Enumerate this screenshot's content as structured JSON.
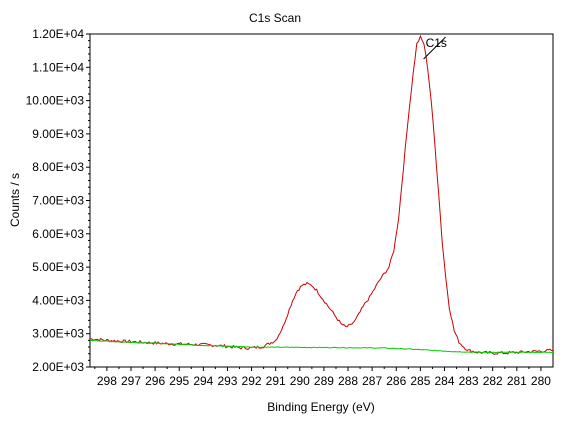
{
  "chart_data": {
    "type": "line",
    "title": "C1s Scan",
    "xlabel": "Binding Energy (eV)",
    "ylabel": "Counts / s",
    "x_reversed": true,
    "xlim": [
      298.7,
      279.5
    ],
    "ylim": [
      2000,
      12000
    ],
    "x_ticks": [
      {
        "v": 298,
        "label": "298"
      },
      {
        "v": 297,
        "label": "297"
      },
      {
        "v": 296,
        "label": "296"
      },
      {
        "v": 295,
        "label": "295"
      },
      {
        "v": 294,
        "label": "294"
      },
      {
        "v": 293,
        "label": "293"
      },
      {
        "v": 292,
        "label": "292"
      },
      {
        "v": 291,
        "label": "291"
      },
      {
        "v": 290,
        "label": "290"
      },
      {
        "v": 289,
        "label": "289"
      },
      {
        "v": 288,
        "label": "288"
      },
      {
        "v": 287,
        "label": "287"
      },
      {
        "v": 286,
        "label": "286"
      },
      {
        "v": 285,
        "label": "285"
      },
      {
        "v": 284,
        "label": "284"
      },
      {
        "v": 283,
        "label": "283"
      },
      {
        "v": 282,
        "label": "282"
      },
      {
        "v": 281,
        "label": "281"
      },
      {
        "v": 280,
        "label": "280"
      }
    ],
    "y_ticks": [
      {
        "v": 2000,
        "label": "2.00E+03"
      },
      {
        "v": 3000,
        "label": "3.00E+03"
      },
      {
        "v": 4000,
        "label": "4.00E+03"
      },
      {
        "v": 5000,
        "label": "5.00E+03"
      },
      {
        "v": 6000,
        "label": "6.00E+03"
      },
      {
        "v": 7000,
        "label": "7.00E+03"
      },
      {
        "v": 8000,
        "label": "8.00E+03"
      },
      {
        "v": 9000,
        "label": "9.00E+03"
      },
      {
        "v": 10000,
        "label": "10.00E+03"
      },
      {
        "v": 11000,
        "label": "1.10E+04"
      },
      {
        "v": 12000,
        "label": "1.20E+04"
      }
    ],
    "grid": false,
    "legend": "none",
    "series": [
      {
        "color": "#cc0000",
        "points": [
          [
            298.7,
            2850
          ],
          [
            298.0,
            2800
          ],
          [
            297.5,
            2780
          ],
          [
            297.0,
            2760
          ],
          [
            296.5,
            2740
          ],
          [
            296.0,
            2720
          ],
          [
            295.5,
            2700
          ],
          [
            295.0,
            2690
          ],
          [
            294.5,
            2680
          ],
          [
            294.0,
            2670
          ],
          [
            293.5,
            2650
          ],
          [
            293.0,
            2620
          ],
          [
            292.5,
            2580
          ],
          [
            292.0,
            2570
          ],
          [
            291.5,
            2620
          ],
          [
            291.0,
            2800
          ],
          [
            290.7,
            3200
          ],
          [
            290.5,
            3600
          ],
          [
            290.3,
            4000
          ],
          [
            290.1,
            4300
          ],
          [
            289.9,
            4450
          ],
          [
            289.7,
            4500
          ],
          [
            289.5,
            4450
          ],
          [
            289.3,
            4300
          ],
          [
            289.1,
            4100
          ],
          [
            288.9,
            3900
          ],
          [
            288.7,
            3700
          ],
          [
            288.5,
            3500
          ],
          [
            288.3,
            3300
          ],
          [
            288.1,
            3200
          ],
          [
            287.9,
            3250
          ],
          [
            287.7,
            3400
          ],
          [
            287.5,
            3650
          ],
          [
            287.3,
            3900
          ],
          [
            287.1,
            4100
          ],
          [
            286.9,
            4350
          ],
          [
            286.7,
            4600
          ],
          [
            286.5,
            4800
          ],
          [
            286.3,
            5000
          ],
          [
            286.1,
            5500
          ],
          [
            285.9,
            6500
          ],
          [
            285.7,
            8000
          ],
          [
            285.5,
            9500
          ],
          [
            285.3,
            10800
          ],
          [
            285.15,
            11700
          ],
          [
            285.0,
            11900
          ],
          [
            284.85,
            11700
          ],
          [
            284.7,
            11000
          ],
          [
            284.55,
            10000
          ],
          [
            284.4,
            8700
          ],
          [
            284.25,
            7300
          ],
          [
            284.1,
            5800
          ],
          [
            283.95,
            4700
          ],
          [
            283.8,
            3800
          ],
          [
            283.6,
            3100
          ],
          [
            283.4,
            2750
          ],
          [
            283.2,
            2600
          ],
          [
            283.0,
            2500
          ],
          [
            282.7,
            2450
          ],
          [
            282.4,
            2430
          ],
          [
            282.0,
            2420
          ],
          [
            281.5,
            2420
          ],
          [
            281.0,
            2440
          ],
          [
            280.5,
            2460
          ],
          [
            280.0,
            2480
          ],
          [
            279.5,
            2500
          ]
        ]
      },
      {
        "color": "#00cc00",
        "points": [
          [
            298.7,
            2800
          ],
          [
            297.0,
            2740
          ],
          [
            295.5,
            2700
          ],
          [
            294.0,
            2650
          ],
          [
            292.0,
            2600
          ],
          [
            290.0,
            2590
          ],
          [
            288.0,
            2580
          ],
          [
            286.5,
            2570
          ],
          [
            285.5,
            2540
          ],
          [
            284.5,
            2500
          ],
          [
            283.5,
            2460
          ],
          [
            282.5,
            2440
          ],
          [
            281.0,
            2440
          ],
          [
            279.5,
            2440
          ]
        ]
      }
    ],
    "annotations": [
      {
        "text": "C1s",
        "x": 284.7,
        "y": 11550
      }
    ]
  }
}
